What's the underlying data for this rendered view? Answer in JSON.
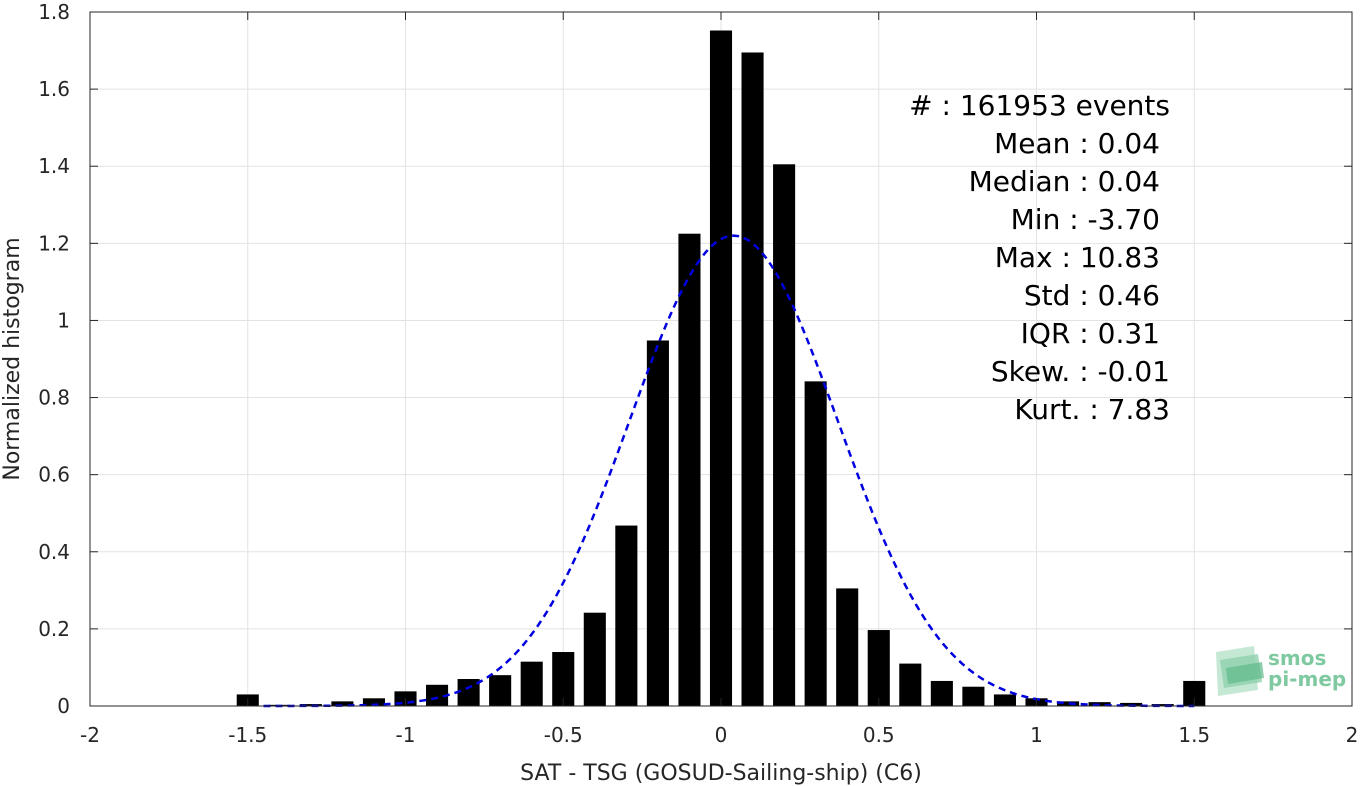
{
  "chart_data": {
    "type": "bar",
    "xlabel": "SAT - TSG (GOSUD-Sailing-ship) (C6)",
    "ylabel": "Normalized histogram",
    "xlim": [
      -2,
      2
    ],
    "ylim": [
      0,
      1.8
    ],
    "xticks": [
      "-2",
      "-1.5",
      "-1",
      "-0.5",
      "0",
      "0.5",
      "1",
      "1.5",
      "2"
    ],
    "xtick_values": [
      -2,
      -1.5,
      -1,
      -0.5,
      0,
      0.5,
      1,
      1.5,
      2
    ],
    "yticks": [
      "0",
      "0.2",
      "0.4",
      "0.6",
      "0.8",
      "1",
      "1.2",
      "1.4",
      "1.6",
      "1.8"
    ],
    "ytick_values": [
      0,
      0.2,
      0.4,
      0.6,
      0.8,
      1,
      1.2,
      1.4,
      1.6,
      1.8
    ],
    "grid": true,
    "bar_width": 0.07,
    "bins": [
      -1.5,
      -1.4,
      -1.3,
      -1.2,
      -1.1,
      -1.0,
      -0.9,
      -0.8,
      -0.7,
      -0.6,
      -0.5,
      -0.4,
      -0.3,
      -0.2,
      -0.1,
      0.0,
      0.1,
      0.2,
      0.3,
      0.4,
      0.5,
      0.6,
      0.7,
      0.8,
      0.9,
      1.0,
      1.1,
      1.2,
      1.3,
      1.4,
      1.5
    ],
    "values": [
      0.03,
      0.003,
      0.005,
      0.012,
      0.02,
      0.038,
      0.055,
      0.07,
      0.08,
      0.115,
      0.14,
      0.242,
      0.468,
      0.948,
      1.225,
      1.752,
      1.695,
      1.405,
      0.842,
      0.305,
      0.197,
      0.11,
      0.065,
      0.05,
      0.03,
      0.02,
      0.012,
      0.01,
      0.008,
      0.005,
      0.065
    ],
    "fit": {
      "type": "gaussian",
      "mean": 0.04,
      "std": 0.33,
      "peak": 1.22,
      "x_range": [
        -1.45,
        1.5
      ],
      "color": "#0000e0",
      "style": "dashed"
    },
    "bar_color": "#000000"
  },
  "stats": {
    "events": "#  : 161953 events",
    "mean": "Mean : 0.04",
    "median": "Median : 0.04",
    "min": "Min : -3.70",
    "max": "Max : 10.83",
    "std": "Std : 0.46",
    "iqr": "IQR : 0.31",
    "skew": "Skew. : -0.01",
    "kurt": "Kurt. : 7.83"
  },
  "logo": {
    "line1": "smos",
    "line2": "pi-mep",
    "color": "#7fc9a1"
  }
}
